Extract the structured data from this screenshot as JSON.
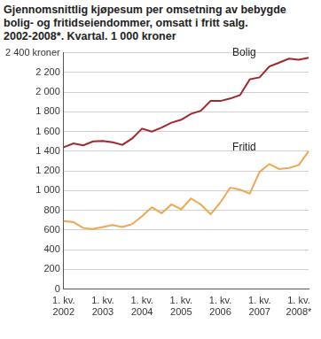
{
  "chart_data": {
    "type": "line",
    "title": [
      "Gjennomsnittlig kjøpesum per omsetning av bebygde",
      "bolig- og fritidseiendommer, omsatt i fritt salg.",
      "2002-2008*. Kvartal. 1 000 kroner"
    ],
    "categories": [
      "1. kv. 2002",
      null,
      null,
      null,
      "1. kv. 2003",
      null,
      null,
      null,
      "1. kv. 2004",
      null,
      null,
      null,
      "1. kv. 2005",
      null,
      null,
      null,
      "1. kv. 2006",
      null,
      null,
      null,
      "1. kv. 2007",
      null,
      null,
      null,
      "1. kv. 2008*",
      null
    ],
    "series": [
      {
        "name": "Bolig",
        "color": "#a3262b",
        "values": [
          1440,
          1480,
          1460,
          1500,
          1505,
          1490,
          1465,
          1530,
          1630,
          1600,
          1640,
          1690,
          1720,
          1780,
          1810,
          1910,
          1910,
          1935,
          1970,
          2130,
          2150,
          2260,
          2300,
          2340,
          2330,
          2350
        ]
      },
      {
        "name": "Fritid",
        "color": "#f2a54f",
        "values": [
          690,
          680,
          620,
          610,
          630,
          650,
          630,
          660,
          740,
          830,
          770,
          860,
          810,
          920,
          860,
          760,
          880,
          1030,
          1010,
          970,
          1190,
          1270,
          1220,
          1230,
          1260,
          1400
        ]
      }
    ],
    "ylim": [
      0,
      2400
    ],
    "yticks": [
      0,
      200,
      400,
      600,
      800,
      {
        "value": 1000,
        "label": "1 000"
      },
      {
        "value": 1200,
        "label": "1 200"
      },
      {
        "value": 1400,
        "label": "1 400"
      },
      {
        "value": 1600,
        "label": "1 600"
      },
      {
        "value": 1800,
        "label": "1 800"
      },
      {
        "value": 2000,
        "label": "2 000"
      },
      {
        "value": 2200,
        "label": "2 200"
      },
      {
        "value": 2400,
        "label": "2 400 kroner"
      }
    ],
    "grid": true
  }
}
